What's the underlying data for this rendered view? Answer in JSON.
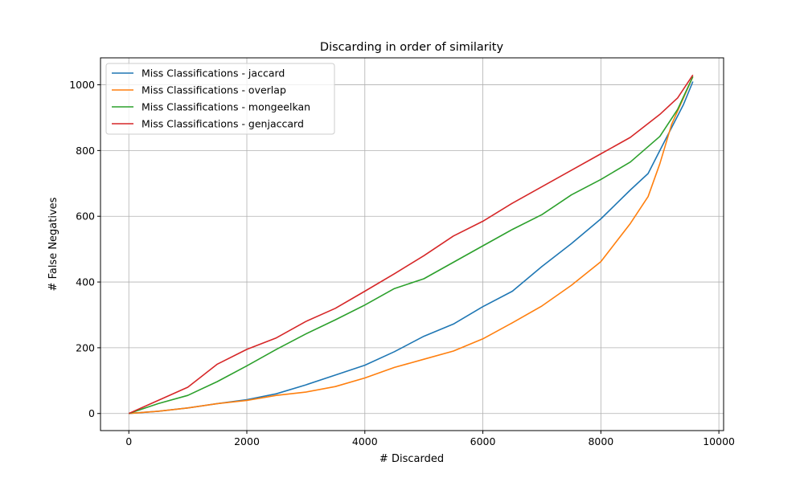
{
  "chart_data": {
    "type": "line",
    "title": "Discarding in order of similarity",
    "xlabel": "# Discarded",
    "ylabel": "# False Negatives",
    "xlim": [
      -480,
      10080
    ],
    "ylim": [
      -52,
      1082
    ],
    "xticks": [
      0,
      2000,
      4000,
      6000,
      8000,
      10000
    ],
    "xtick_labels": [
      "0",
      "2000",
      "4000",
      "6000",
      "8000",
      "10000"
    ],
    "yticks": [
      0,
      200,
      400,
      600,
      800,
      1000
    ],
    "ytick_labels": [
      "0",
      "200",
      "400",
      "600",
      "800",
      "1000"
    ],
    "grid": true,
    "legend_position": "top-left",
    "series": [
      {
        "name": "Miss Classifications - jaccard",
        "color": "#1f77b4",
        "x": [
          0,
          500,
          1000,
          1500,
          2000,
          2500,
          3000,
          3500,
          4000,
          4500,
          5000,
          5500,
          6000,
          6500,
          7000,
          7500,
          8000,
          8500,
          8800,
          9000,
          9200,
          9400,
          9560
        ],
        "y": [
          0,
          7,
          17,
          30,
          42,
          60,
          87,
          117,
          147,
          188,
          235,
          272,
          325,
          372,
          447,
          517,
          592,
          680,
          730,
          800,
          870,
          940,
          1010
        ]
      },
      {
        "name": "Miss Classifications - overlap",
        "color": "#ff7f0e",
        "x": [
          0,
          500,
          1000,
          1500,
          2000,
          2500,
          3000,
          3500,
          4000,
          4500,
          5000,
          5500,
          6000,
          6500,
          7000,
          7500,
          8000,
          8500,
          8800,
          9000,
          9200,
          9400,
          9560
        ],
        "y": [
          0,
          7,
          17,
          30,
          40,
          55,
          65,
          82,
          108,
          140,
          165,
          190,
          227,
          276,
          327,
          390,
          462,
          578,
          660,
          760,
          880,
          960,
          1025
        ]
      },
      {
        "name": "Miss Classifications - mongeelkan",
        "color": "#2ca02c",
        "x": [
          0,
          500,
          1000,
          1500,
          2000,
          2500,
          3000,
          3500,
          4000,
          4500,
          5000,
          5500,
          6000,
          6500,
          7000,
          7500,
          8000,
          8500,
          9000,
          9300,
          9560
        ],
        "y": [
          0,
          30,
          55,
          97,
          145,
          195,
          242,
          285,
          330,
          380,
          410,
          460,
          510,
          560,
          605,
          665,
          712,
          765,
          843,
          925,
          1025
        ]
      },
      {
        "name": "Miss Classifications - genjaccard",
        "color": "#d62728",
        "x": [
          0,
          500,
          1000,
          1500,
          2000,
          2500,
          3000,
          3500,
          4000,
          4500,
          5000,
          5500,
          6000,
          6500,
          7000,
          7500,
          8000,
          8500,
          9000,
          9300,
          9560
        ],
        "y": [
          0,
          40,
          80,
          150,
          195,
          230,
          280,
          320,
          372,
          425,
          480,
          540,
          585,
          640,
          690,
          740,
          790,
          840,
          910,
          960,
          1030
        ]
      }
    ]
  }
}
